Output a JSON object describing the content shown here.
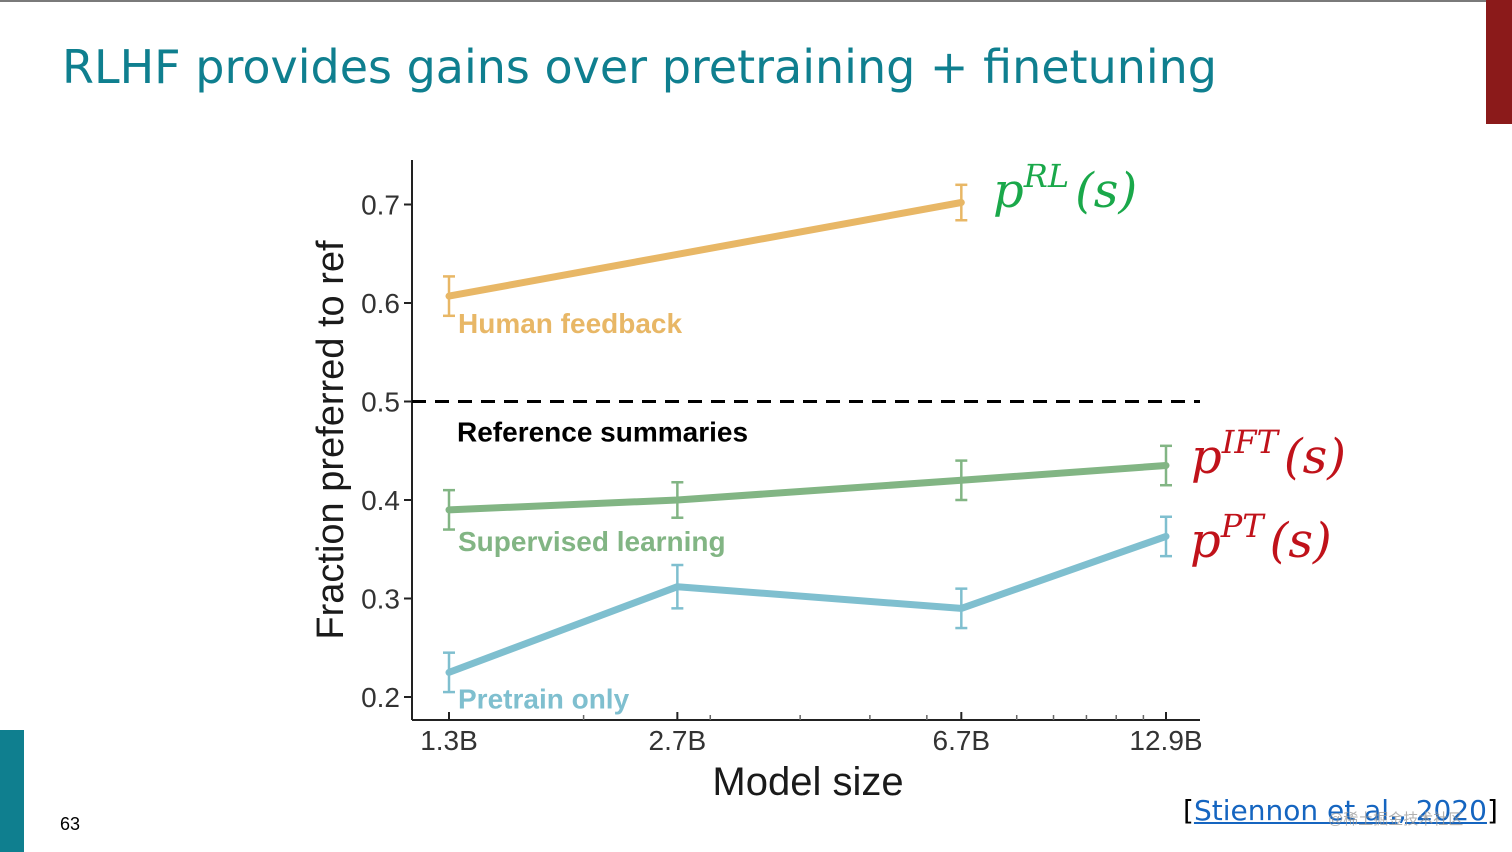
{
  "slide": {
    "title": "RLHF provides gains over pretraining + finetuning",
    "page_number": "63",
    "citation_open": "[",
    "citation_link": "Stiennon et al., 2020",
    "citation_close": "]",
    "watermark": "@稀土掘金技术社区"
  },
  "colors": {
    "title": "#0f7f8f",
    "human_feedback": "#e8b766",
    "supervised": "#82b584",
    "pretrain": "#7fbfcf",
    "reference": "#000000",
    "math_rl": "#1aa84a",
    "math_ift": "#c0121a",
    "math_pt": "#c0121a"
  },
  "chart_data": {
    "type": "line",
    "title": "",
    "xlabel": "Model size",
    "ylabel": "Fraction preferred to ref",
    "categories": [
      "1.3B",
      "2.7B",
      "6.7B",
      "12.9B"
    ],
    "x": [
      1.3,
      2.7,
      6.7,
      12.9
    ],
    "x_scale": "log",
    "ylim": [
      0.2,
      0.75
    ],
    "yticks": [
      "0.2",
      "0.3",
      "0.4",
      "0.5",
      "0.6",
      "0.7"
    ],
    "reference_line": {
      "value": 0.5,
      "label": "Reference summaries",
      "style": "dashed"
    },
    "series": [
      {
        "key": "human_feedback",
        "name": "Human feedback",
        "x": [
          1.3,
          6.7
        ],
        "values": [
          0.607,
          0.702
        ],
        "errors": [
          0.02,
          0.018
        ],
        "annotation": {
          "base": "p",
          "sup": "RL",
          "arg": "(s)"
        }
      },
      {
        "key": "supervised",
        "name": "Supervised learning",
        "x": [
          1.3,
          2.7,
          6.7,
          12.9
        ],
        "values": [
          0.39,
          0.4,
          0.42,
          0.435
        ],
        "errors": [
          0.02,
          0.018,
          0.02,
          0.02
        ],
        "annotation": {
          "base": "p",
          "sup": "IFT",
          "arg": "(s)"
        }
      },
      {
        "key": "pretrain",
        "name": "Pretrain only",
        "x": [
          1.3,
          2.7,
          6.7,
          12.9
        ],
        "values": [
          0.225,
          0.312,
          0.29,
          0.363
        ],
        "errors": [
          0.02,
          0.022,
          0.02,
          0.02
        ],
        "annotation": {
          "base": "p",
          "sup": "PT",
          "arg": "(s)"
        }
      }
    ]
  }
}
